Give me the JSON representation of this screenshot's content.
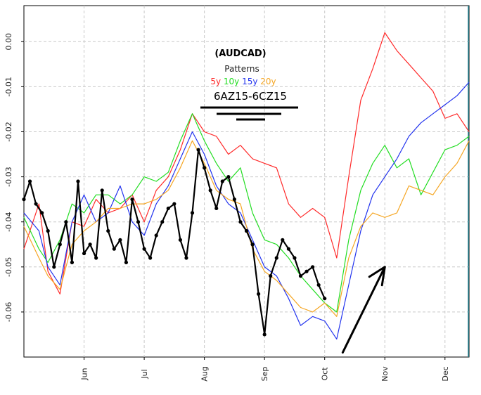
{
  "chart_data": {
    "type": "line",
    "title": "(AUDCAD)",
    "subtitle": "Patterns",
    "contract_label": "6AZ15-6CZ15",
    "xlabel": "",
    "ylabel": "",
    "ylim": [
      -0.07,
      0.008
    ],
    "grid": true,
    "legend": "top-center",
    "yticks": [
      "0.00",
      "-0.01",
      "-0.02",
      "-0.03",
      "-0.04",
      "-0.05",
      "-0.06"
    ],
    "ytick_values": [
      0.0,
      -0.01,
      -0.02,
      -0.03,
      -0.04,
      -0.05,
      -0.06
    ],
    "xticks": [
      "Jun",
      "Jul",
      "Aug",
      "Sep",
      "Oct",
      "Nov",
      "Dec"
    ],
    "xtick_days": [
      20,
      40,
      60,
      80,
      100,
      120,
      140
    ],
    "xlim_days": [
      0,
      148
    ],
    "marker_line_day": 148,
    "series": [
      {
        "name": "5y",
        "color": "#ff2a2a",
        "width": 1.2,
        "markers": false,
        "x": [
          0,
          5,
          8,
          12,
          16,
          20,
          24,
          28,
          32,
          36,
          40,
          44,
          48,
          52,
          56,
          60,
          64,
          68,
          72,
          76,
          80,
          84,
          88,
          92,
          96,
          100,
          104,
          108,
          112,
          116,
          120,
          124,
          128,
          132,
          136,
          140,
          144,
          148
        ],
        "y": [
          -0.046,
          -0.036,
          -0.051,
          -0.056,
          -0.04,
          -0.041,
          -0.035,
          -0.038,
          -0.037,
          -0.034,
          -0.04,
          -0.033,
          -0.03,
          -0.024,
          -0.016,
          -0.02,
          -0.021,
          -0.025,
          -0.023,
          -0.026,
          -0.027,
          -0.028,
          -0.036,
          -0.039,
          -0.037,
          -0.039,
          -0.048,
          -0.03,
          -0.013,
          -0.006,
          0.002,
          -0.002,
          -0.005,
          -0.008,
          -0.011,
          -0.017,
          -0.016,
          -0.02
        ]
      },
      {
        "name": "10y",
        "color": "#22dd22",
        "width": 1.2,
        "markers": false,
        "x": [
          0,
          5,
          8,
          12,
          16,
          20,
          24,
          28,
          32,
          36,
          40,
          44,
          48,
          52,
          56,
          60,
          64,
          68,
          72,
          76,
          80,
          84,
          88,
          92,
          96,
          100,
          104,
          108,
          112,
          116,
          120,
          124,
          128,
          132,
          136,
          140,
          144,
          148
        ],
        "y": [
          -0.039,
          -0.046,
          -0.049,
          -0.044,
          -0.036,
          -0.038,
          -0.034,
          -0.034,
          -0.036,
          -0.034,
          -0.03,
          -0.031,
          -0.029,
          -0.022,
          -0.016,
          -0.022,
          -0.027,
          -0.031,
          -0.028,
          -0.038,
          -0.044,
          -0.045,
          -0.048,
          -0.052,
          -0.055,
          -0.058,
          -0.06,
          -0.044,
          -0.033,
          -0.027,
          -0.023,
          -0.028,
          -0.026,
          -0.034,
          -0.029,
          -0.024,
          -0.023,
          -0.021
        ]
      },
      {
        "name": "15y",
        "color": "#2233ee",
        "width": 1.2,
        "markers": false,
        "x": [
          0,
          5,
          8,
          12,
          16,
          20,
          24,
          28,
          32,
          36,
          40,
          44,
          48,
          52,
          56,
          60,
          64,
          68,
          72,
          76,
          80,
          84,
          88,
          92,
          96,
          100,
          104,
          108,
          112,
          116,
          120,
          124,
          128,
          132,
          136,
          140,
          144,
          148
        ],
        "y": [
          -0.038,
          -0.042,
          -0.05,
          -0.054,
          -0.04,
          -0.034,
          -0.04,
          -0.038,
          -0.032,
          -0.04,
          -0.043,
          -0.036,
          -0.032,
          -0.026,
          -0.02,
          -0.025,
          -0.032,
          -0.036,
          -0.038,
          -0.044,
          -0.05,
          -0.052,
          -0.057,
          -0.063,
          -0.061,
          -0.062,
          -0.066,
          -0.054,
          -0.042,
          -0.034,
          -0.03,
          -0.026,
          -0.021,
          -0.018,
          -0.016,
          -0.014,
          -0.012,
          -0.009
        ]
      },
      {
        "name": "20y",
        "color": "#f5a623",
        "width": 1.2,
        "markers": false,
        "x": [
          0,
          5,
          8,
          12,
          16,
          20,
          24,
          28,
          32,
          36,
          40,
          44,
          48,
          52,
          56,
          60,
          64,
          68,
          72,
          76,
          80,
          84,
          88,
          92,
          96,
          100,
          104,
          108,
          112,
          116,
          120,
          124,
          128,
          132,
          136,
          140,
          144,
          148
        ],
        "y": [
          -0.041,
          -0.048,
          -0.052,
          -0.055,
          -0.045,
          -0.042,
          -0.04,
          -0.037,
          -0.037,
          -0.036,
          -0.036,
          -0.035,
          -0.033,
          -0.028,
          -0.022,
          -0.027,
          -0.033,
          -0.035,
          -0.036,
          -0.046,
          -0.051,
          -0.053,
          -0.056,
          -0.059,
          -0.06,
          -0.058,
          -0.061,
          -0.048,
          -0.041,
          -0.038,
          -0.039,
          -0.038,
          -0.032,
          -0.033,
          -0.034,
          -0.03,
          -0.027,
          -0.022
        ]
      },
      {
        "name": "",
        "color": "#000000",
        "width": 2.2,
        "markers": true,
        "x": [
          0,
          2,
          4,
          6,
          8,
          10,
          12,
          14,
          16,
          18,
          20,
          22,
          24,
          26,
          28,
          30,
          32,
          34,
          36,
          38,
          40,
          42,
          44,
          46,
          48,
          50,
          52,
          54,
          56,
          58,
          60,
          62,
          64,
          66,
          68,
          70,
          72,
          74,
          76,
          78,
          80,
          82,
          84,
          86,
          88,
          90,
          92,
          94,
          96,
          98,
          100
        ],
        "y": [
          -0.035,
          -0.031,
          -0.036,
          -0.038,
          -0.042,
          -0.05,
          -0.045,
          -0.04,
          -0.049,
          -0.031,
          -0.047,
          -0.045,
          -0.048,
          -0.033,
          -0.042,
          -0.046,
          -0.044,
          -0.049,
          -0.035,
          -0.04,
          -0.046,
          -0.048,
          -0.043,
          -0.04,
          -0.037,
          -0.036,
          -0.044,
          -0.048,
          -0.038,
          -0.024,
          -0.028,
          -0.033,
          -0.037,
          -0.031,
          -0.03,
          -0.035,
          -0.04,
          -0.042,
          -0.045,
          -0.056,
          -0.065,
          -0.052,
          -0.048,
          -0.044,
          -0.046,
          -0.048,
          -0.052,
          -0.051,
          -0.05,
          -0.054,
          -0.057
        ]
      }
    ],
    "annotation_arrow": {
      "from": [
        106,
        -0.069
      ],
      "to": [
        120,
        -0.05
      ]
    }
  }
}
